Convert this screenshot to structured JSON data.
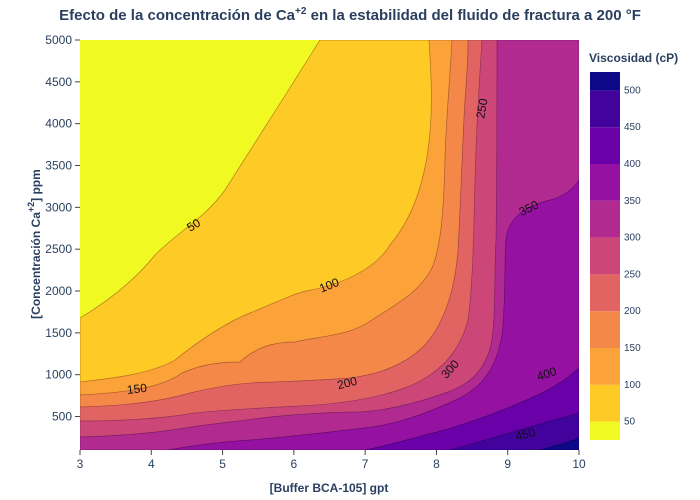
{
  "title": {
    "main": "Efecto de la concentración de Ca",
    "superscript": "+2",
    "tail": " en la estabilidad del fluido de fractura a 200 °F"
  },
  "axes": {
    "x_title": "[Buffer BCA-105] gpt",
    "y_title_main": "[Concentración Ca",
    "y_title_sup": "+2",
    "y_title_tail": "] ppm"
  },
  "colorbar": {
    "title": "Viscosidad (cP)",
    "tick_labels": [
      "50",
      "100",
      "150",
      "200",
      "250",
      "300",
      "350",
      "400",
      "450",
      "500"
    ]
  },
  "chart_data": {
    "type": "heatmap",
    "subtype": "filled contour",
    "title": "Efecto de la concentración de Ca+2 en la estabilidad del fluido de fractura a 200 °F",
    "xlabel": "[Buffer BCA-105] gpt",
    "ylabel": "[Concentración Ca+2] ppm",
    "zlabel": "Viscosidad (cP)",
    "xlim": [
      3,
      10
    ],
    "ylim": [
      100,
      5000
    ],
    "x_ticks": [
      3,
      4,
      5,
      6,
      7,
      8,
      9,
      10
    ],
    "y_ticks": [
      500,
      1000,
      1500,
      2000,
      2500,
      3000,
      3500,
      4000,
      4500,
      5000
    ],
    "zlim": [
      25,
      525
    ],
    "contour_levels": [
      50,
      100,
      150,
      200,
      250,
      300,
      350,
      400,
      450,
      500
    ],
    "colors": [
      "#f0f921",
      "#fdca26",
      "#fba238",
      "#f48849",
      "#e16462",
      "#cc4778",
      "#bd3786",
      "#b12a90",
      "#9511a1",
      "#6a00a8",
      "#42039d",
      "#0d0887"
    ],
    "colorbar_colors": [
      "#f0f921",
      "#fdca26",
      "#fba238",
      "#f48849",
      "#e16462",
      "#cc4778",
      "#b12a90",
      "#9511a1",
      "#6a00a8",
      "#42039d",
      "#0d0887"
    ],
    "contour_labels": [
      {
        "text": "50",
        "x": 4.6,
        "y": 2780,
        "angle": -32
      },
      {
        "text": "100",
        "x": 6.5,
        "y": 2060,
        "angle": -22
      },
      {
        "text": "150",
        "x": 3.8,
        "y": 820,
        "angle": -6
      },
      {
        "text": "200",
        "x": 6.75,
        "y": 890,
        "angle": -14
      },
      {
        "text": "250",
        "x": 8.65,
        "y": 4180,
        "angle": -80
      },
      {
        "text": "300",
        "x": 8.2,
        "y": 1060,
        "angle": -48
      },
      {
        "text": "350",
        "x": 9.3,
        "y": 2980,
        "angle": -26
      },
      {
        "text": "400",
        "x": 9.55,
        "y": 1000,
        "angle": -18
      },
      {
        "text": "450",
        "x": 9.25,
        "y": 280,
        "angle": -14
      }
    ]
  }
}
